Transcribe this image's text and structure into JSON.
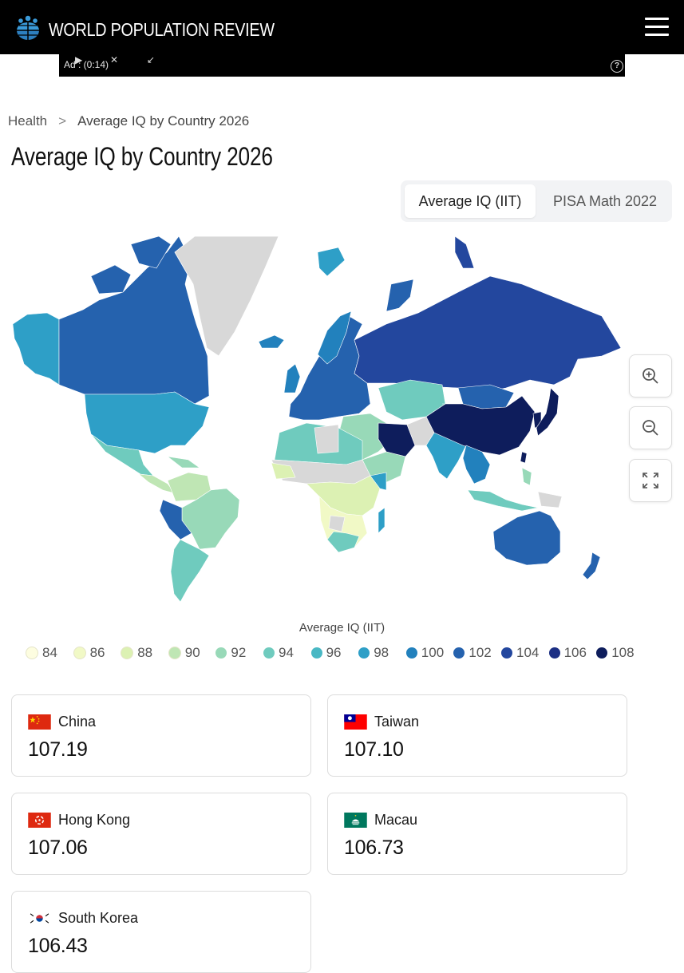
{
  "header": {
    "site_title": "WORLD POPULATION REVIEW",
    "logo_icon": "globe-people-logo",
    "menu_icon": "hamburger-menu-icon"
  },
  "ad": {
    "label": "Ad : (0:14)",
    "help": "?"
  },
  "breadcrumb": {
    "parent": "Health",
    "separator": ">",
    "current": "Average IQ by Country 2026"
  },
  "page_title": "Average IQ by Country 2026",
  "tabs": [
    {
      "label": "Average IQ (IIT)",
      "active": true
    },
    {
      "label": "PISA Math 2022",
      "active": false
    }
  ],
  "map_controls": {
    "zoom_in_icon": "zoom-in-icon",
    "zoom_out_icon": "zoom-out-icon",
    "fullscreen_icon": "fullscreen-icon"
  },
  "legend": {
    "title": "Average IQ (IIT)",
    "items": [
      {
        "label": "84",
        "color": "#fdfde0"
      },
      {
        "label": "86",
        "color": "#f1f9c6"
      },
      {
        "label": "88",
        "color": "#dcf1b3"
      },
      {
        "label": "90",
        "color": "#bfe6b4"
      },
      {
        "label": "92",
        "color": "#98d9b8"
      },
      {
        "label": "94",
        "color": "#6fcbbe"
      },
      {
        "label": "96",
        "color": "#49b8c4"
      },
      {
        "label": "98",
        "color": "#2e9fc7"
      },
      {
        "label": "100",
        "color": "#2281bd"
      },
      {
        "label": "102",
        "color": "#2562ae"
      },
      {
        "label": "104",
        "color": "#23479e"
      },
      {
        "label": "106",
        "color": "#1c2f84"
      },
      {
        "label": "108",
        "color": "#0e1d5c"
      }
    ]
  },
  "cards": [
    {
      "country": "China",
      "value": "107.19",
      "flag": "china-flag"
    },
    {
      "country": "Taiwan",
      "value": "107.10",
      "flag": "taiwan-flag"
    },
    {
      "country": "Hong Kong",
      "value": "107.06",
      "flag": "hong-kong-flag"
    },
    {
      "country": "Macau",
      "value": "106.73",
      "flag": "macau-flag"
    },
    {
      "country": "South Korea",
      "value": "106.43",
      "flag": "south-korea-flag"
    }
  ]
}
